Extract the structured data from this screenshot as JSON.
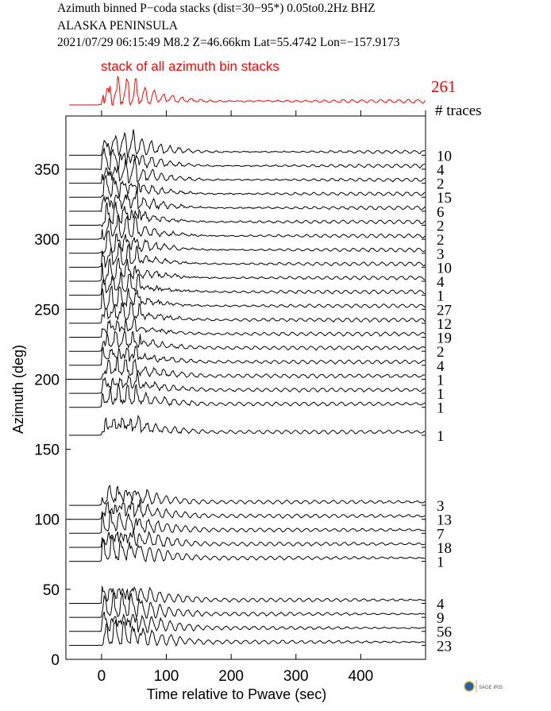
{
  "header": {
    "line1": "Azimuth binned P−coda stacks (dist=30−95*)  0.05to0.2Hz  BHZ",
    "line2": "ALASKA PENINSULA",
    "line3": "2021/07/29  06:15:49   M8.2  Z=46.66km Lat=55.4742 Lon=−157.9173"
  },
  "chart_data": {
    "type": "line",
    "title": "",
    "xlabel": "Time relative to Pwave (sec)",
    "ylabel": "Azimuth (deg)",
    "xlim": [
      -55,
      500
    ],
    "ylim": [
      0,
      388
    ],
    "xticks": [
      0,
      100,
      200,
      300,
      400
    ],
    "yticks": [
      0,
      50,
      100,
      150,
      200,
      250,
      300,
      350
    ],
    "grid": false,
    "stack": {
      "label": "stack of all azimuth bin stacks",
      "count": "261",
      "color": "#ff0000"
    },
    "count_header": "# traces",
    "trace_color": "#000000",
    "traces": [
      {
        "azimuth": 360,
        "count": "10"
      },
      {
        "azimuth": 350,
        "count": "4"
      },
      {
        "azimuth": 340,
        "count": "2"
      },
      {
        "azimuth": 330,
        "count": "15"
      },
      {
        "azimuth": 320,
        "count": "6"
      },
      {
        "azimuth": 310,
        "count": "2"
      },
      {
        "azimuth": 300,
        "count": "2"
      },
      {
        "azimuth": 290,
        "count": "3"
      },
      {
        "azimuth": 280,
        "count": "10"
      },
      {
        "azimuth": 270,
        "count": "4"
      },
      {
        "azimuth": 260,
        "count": "1"
      },
      {
        "azimuth": 250,
        "count": "27"
      },
      {
        "azimuth": 240,
        "count": "12"
      },
      {
        "azimuth": 230,
        "count": "19"
      },
      {
        "azimuth": 220,
        "count": "2"
      },
      {
        "azimuth": 210,
        "count": "4"
      },
      {
        "azimuth": 200,
        "count": "1"
      },
      {
        "azimuth": 190,
        "count": "1"
      },
      {
        "azimuth": 180,
        "count": "1"
      },
      {
        "azimuth": 160,
        "count": "1"
      },
      {
        "azimuth": 110,
        "count": "3"
      },
      {
        "azimuth": 100,
        "count": "13"
      },
      {
        "azimuth": 90,
        "count": "7"
      },
      {
        "azimuth": 80,
        "count": "18"
      },
      {
        "azimuth": 70,
        "count": "1"
      },
      {
        "azimuth": 40,
        "count": "4"
      },
      {
        "azimuth": 30,
        "count": "9"
      },
      {
        "azimuth": 20,
        "count": "56"
      },
      {
        "azimuth": 10,
        "count": "23"
      }
    ]
  },
  "logo": {
    "text": "SAGE IRIS"
  }
}
